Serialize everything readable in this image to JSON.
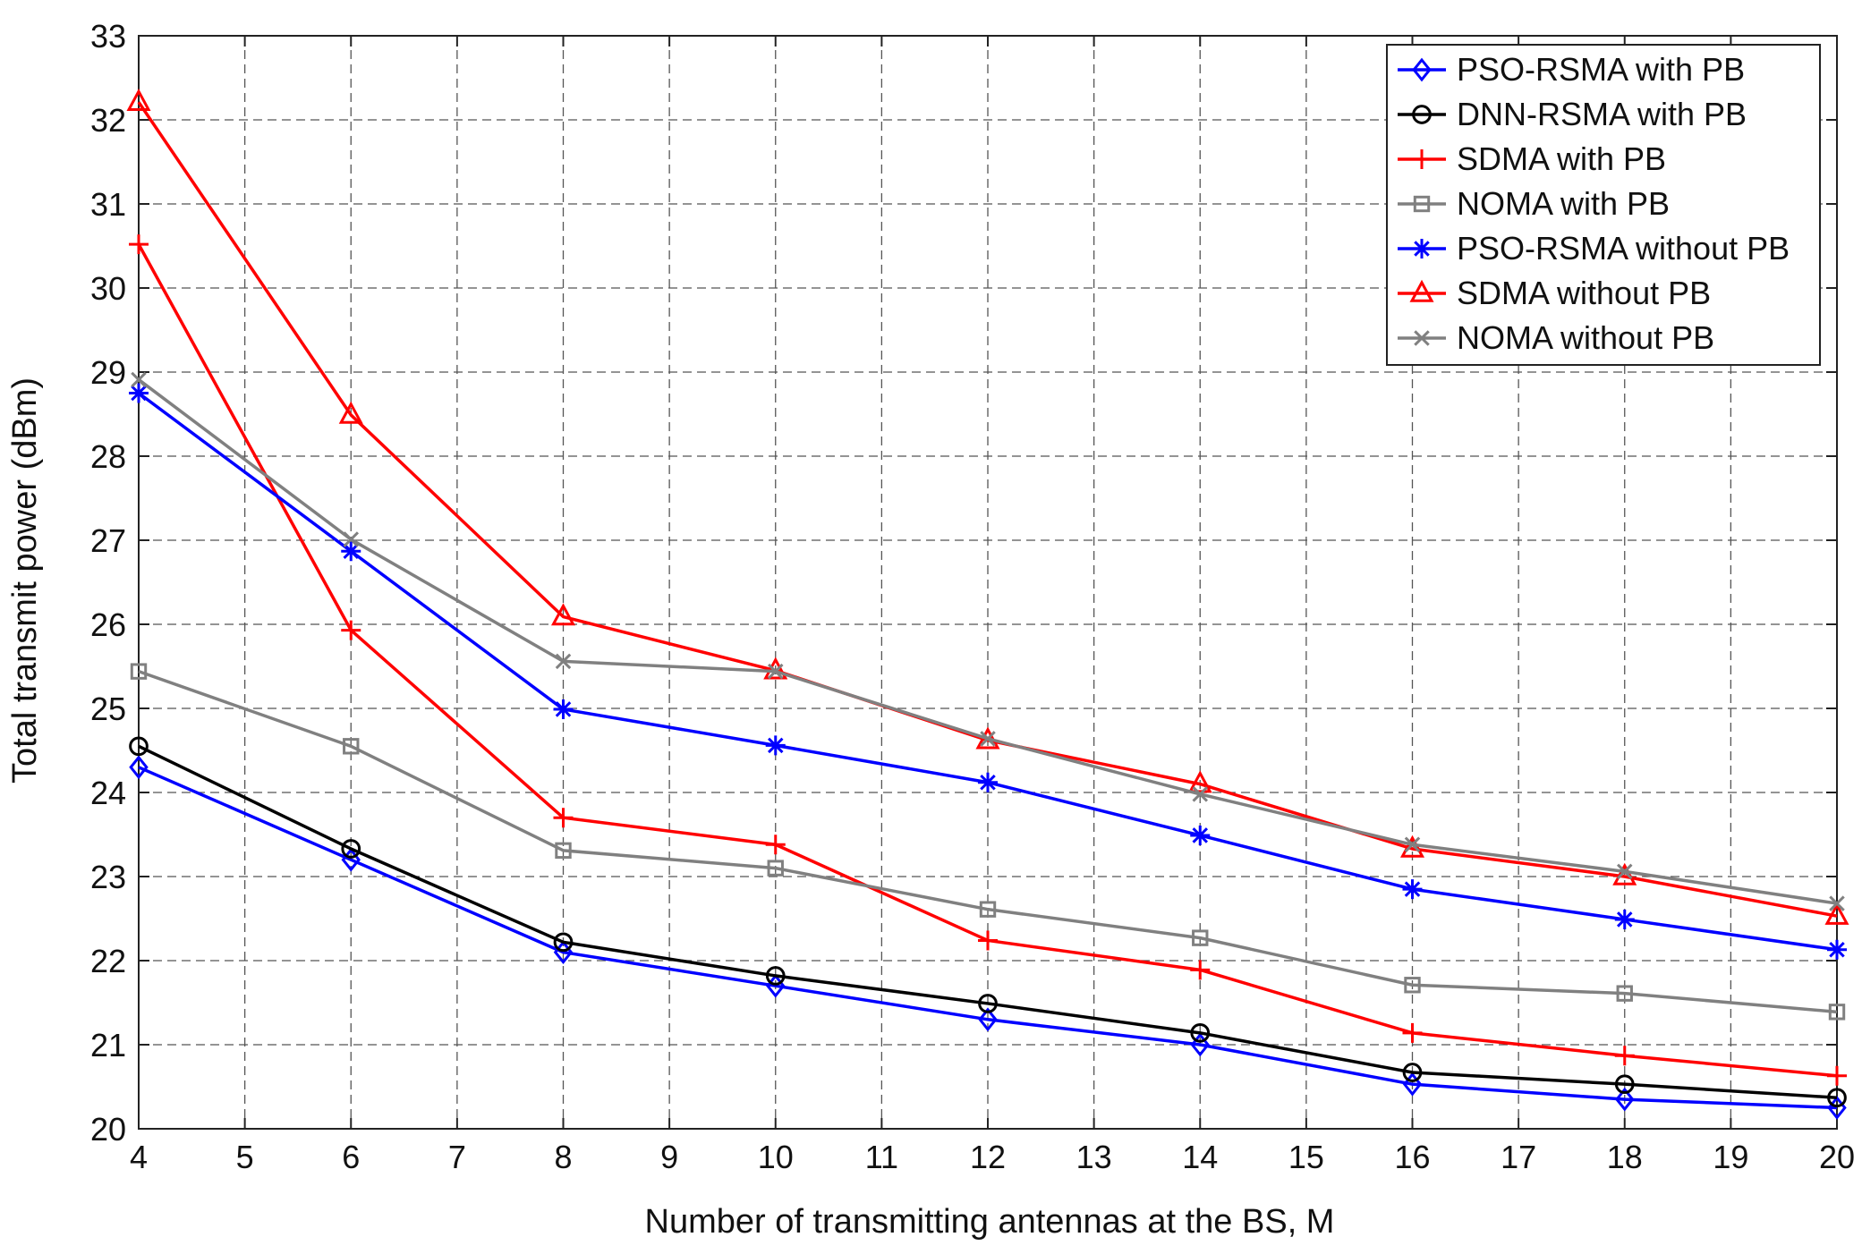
{
  "chart_data": {
    "type": "line",
    "title": "",
    "xlabel": "Number of transmitting antennas at the BS, M",
    "ylabel": "Total transmit power (dBm)",
    "xlim": [
      4,
      20
    ],
    "ylim": [
      20,
      33
    ],
    "xticks": [
      4,
      5,
      6,
      7,
      8,
      9,
      10,
      11,
      12,
      13,
      14,
      15,
      16,
      17,
      18,
      19,
      20
    ],
    "yticks": [
      20,
      21,
      22,
      23,
      24,
      25,
      26,
      27,
      28,
      29,
      30,
      31,
      32,
      33
    ],
    "grid": true,
    "legend_position": "top-right",
    "x": [
      4,
      6,
      8,
      10,
      12,
      14,
      16,
      18,
      20
    ],
    "series": [
      {
        "name": "PSO-RSMA with PB",
        "color": "#0000ff",
        "marker": "diamond",
        "values": [
          24.3,
          23.2,
          22.1,
          21.7,
          21.3,
          21.0,
          20.53,
          20.35,
          20.25
        ]
      },
      {
        "name": "DNN-RSMA with PB",
        "color": "#000000",
        "marker": "circle",
        "values": [
          24.55,
          23.33,
          22.22,
          21.82,
          21.49,
          21.14,
          20.67,
          20.53,
          20.37
        ]
      },
      {
        "name": "SDMA with PB",
        "color": "#ff0000",
        "marker": "plus",
        "values": [
          30.52,
          25.93,
          23.7,
          23.38,
          22.24,
          21.89,
          21.14,
          20.87,
          20.63
        ]
      },
      {
        "name": "NOMA with PB",
        "color": "#808080",
        "marker": "square",
        "values": [
          25.44,
          24.55,
          23.31,
          23.1,
          22.61,
          22.27,
          21.71,
          21.61,
          21.39
        ]
      },
      {
        "name": "PSO-RSMA without PB",
        "color": "#0000ff",
        "marker": "asterisk",
        "values": [
          28.75,
          26.87,
          24.99,
          24.56,
          24.12,
          23.49,
          22.85,
          22.49,
          22.13
        ]
      },
      {
        "name": "SDMA without PB",
        "color": "#ff0000",
        "marker": "triangle",
        "values": [
          32.21,
          28.49,
          26.09,
          25.45,
          24.62,
          24.1,
          23.33,
          23.0,
          22.53
        ]
      },
      {
        "name": "NOMA without PB",
        "color": "#808080",
        "marker": "x",
        "values": [
          28.91,
          27.01,
          25.56,
          25.44,
          24.64,
          23.98,
          23.38,
          23.06,
          22.68
        ]
      }
    ]
  }
}
